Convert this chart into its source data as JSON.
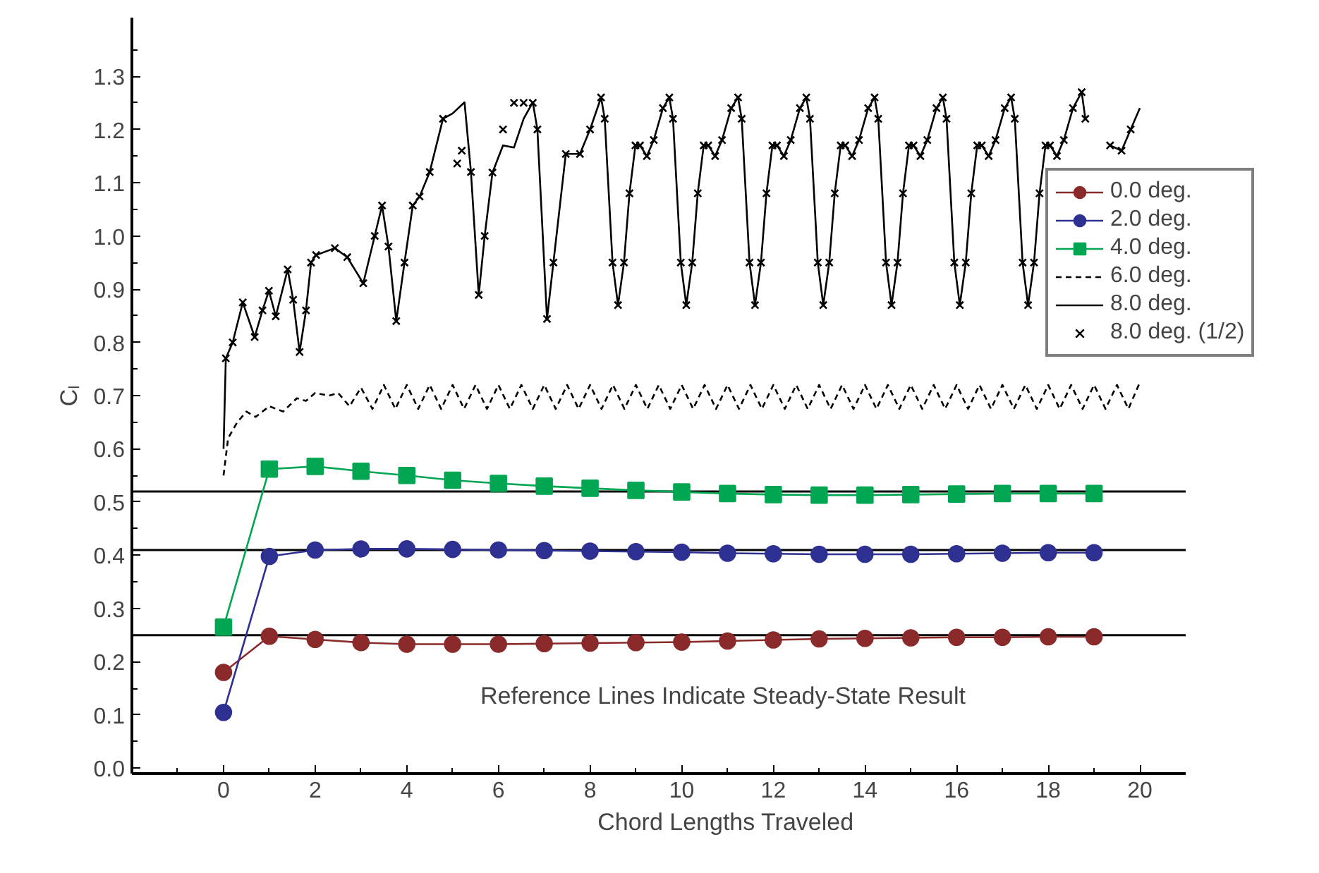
{
  "chart_data": {
    "type": "line",
    "xlabel": "Chord Lengths Traveled",
    "ylabel": "Cₗ",
    "xlim": [
      -2,
      21
    ],
    "ylim": [
      -0.01,
      1.41
    ],
    "xticks": [
      {
        "value": -1,
        "label": null
      },
      0,
      {
        "value": 1,
        "label": null
      },
      2,
      {
        "value": 3,
        "label": null
      },
      4,
      {
        "value": 5,
        "label": null
      },
      6,
      {
        "value": 7,
        "label": null
      },
      8,
      {
        "value": 9,
        "label": null
      },
      10,
      {
        "value": 11,
        "label": null
      },
      12,
      {
        "value": 13,
        "label": null
      },
      14,
      {
        "value": 15,
        "label": null
      },
      16,
      {
        "value": 17,
        "label": null
      },
      18,
      {
        "value": 19,
        "label": null
      },
      20
    ],
    "yticks": [
      {
        "value": 0,
        "label": "0.0"
      },
      {
        "value": 0.05,
        "label": null
      },
      0.1,
      {
        "value": 0.15,
        "label": null
      },
      0.2,
      {
        "value": 0.25,
        "label": null
      },
      0.3,
      {
        "value": 0.35,
        "label": null
      },
      0.4,
      {
        "value": 0.45,
        "label": null
      },
      0.5,
      {
        "value": 0.55,
        "label": null
      },
      0.6,
      {
        "value": 0.65,
        "label": null
      },
      0.7,
      {
        "value": 0.75,
        "label": null
      },
      0.8,
      {
        "value": 0.85,
        "label": null
      },
      0.9,
      {
        "value": 0.95,
        "label": null
      },
      {
        "value": 1,
        "label": "1.0"
      },
      {
        "value": 1.05,
        "label": null
      },
      1.1,
      {
        "value": 1.15,
        "label": null
      },
      1.2,
      {
        "value": 1.25,
        "label": null
      },
      1.3,
      {
        "value": 1.35,
        "label": null
      }
    ],
    "grid": false,
    "legend": "right",
    "annotations": [
      "Reference Lines Indicate Steady-State Result"
    ],
    "ref_lines": [
      {
        "axis": "y",
        "value": 0.25,
        "color": "#000000"
      },
      {
        "axis": "y",
        "value": 0.41,
        "color": "#000000"
      },
      {
        "axis": "y",
        "value": 0.52,
        "color": "#000000"
      }
    ],
    "series": [
      {
        "name": "0.0 deg.",
        "color": "#8b2a2a",
        "marker": "circle",
        "line_style": "solid",
        "x": [
          0,
          1,
          2,
          3,
          4,
          5,
          6,
          7,
          8,
          9,
          10,
          11,
          12,
          13,
          14,
          15,
          16,
          17,
          18,
          19
        ],
        "values": [
          0.18,
          0.248,
          0.242,
          0.236,
          0.233,
          0.233,
          0.233,
          0.234,
          0.235,
          0.236,
          0.237,
          0.239,
          0.241,
          0.243,
          0.244,
          0.245,
          0.246,
          0.246,
          0.247,
          0.247
        ]
      },
      {
        "name": "2.0 deg.",
        "color": "#2e3192",
        "marker": "circle",
        "line_style": "solid",
        "x": [
          0,
          1,
          2,
          3,
          4,
          5,
          6,
          7,
          8,
          9,
          10,
          11,
          12,
          13,
          14,
          15,
          16,
          17,
          18,
          19
        ],
        "values": [
          0.105,
          0.398,
          0.41,
          0.412,
          0.412,
          0.411,
          0.41,
          0.409,
          0.408,
          0.407,
          0.406,
          0.404,
          0.403,
          0.402,
          0.402,
          0.402,
          0.403,
          0.404,
          0.405,
          0.405
        ]
      },
      {
        "name": "4.0 deg.",
        "color": "#00a651",
        "marker": "square",
        "line_style": "solid",
        "x": [
          0,
          1,
          2,
          3,
          4,
          5,
          6,
          7,
          8,
          9,
          10,
          11,
          12,
          13,
          14,
          15,
          16,
          17,
          18,
          19
        ],
        "values": [
          0.265,
          0.562,
          0.567,
          0.558,
          0.55,
          0.541,
          0.535,
          0.53,
          0.526,
          0.522,
          0.519,
          0.516,
          0.514,
          0.513,
          0.513,
          0.514,
          0.515,
          0.516,
          0.516,
          0.516
        ]
      },
      {
        "name": "6.0 deg.",
        "color": "#000000",
        "marker": "none",
        "line_style": "dashed",
        "x": [
          0,
          0.1,
          0.3,
          0.5,
          0.7,
          1.0,
          1.3,
          1.6,
          1.8,
          2.0,
          2.3,
          2.5,
          2.75,
          3.0,
          3.25,
          3.5,
          3.75,
          4.0,
          4.25,
          4.5,
          4.75,
          5.0,
          5.25,
          5.5,
          5.75,
          6.0,
          6.25,
          6.5,
          6.75,
          7.0,
          7.25,
          7.5,
          7.75,
          8.0,
          8.25,
          8.5,
          8.75,
          9.0,
          9.25,
          9.5,
          9.75,
          10.0,
          10.25,
          10.5,
          10.75,
          11.0,
          11.25,
          11.5,
          11.75,
          12.0,
          12.25,
          12.5,
          12.75,
          13.0,
          13.25,
          13.5,
          13.75,
          14.0,
          14.25,
          14.5,
          14.75,
          15.0,
          15.25,
          15.5,
          15.75,
          16.0,
          16.25,
          16.5,
          16.75,
          17.0,
          17.25,
          17.5,
          17.75,
          18.0,
          18.25,
          18.5,
          18.75,
          19.0,
          19.25,
          19.5,
          19.75,
          20.0
        ],
        "values": [
          0.55,
          0.62,
          0.65,
          0.67,
          0.66,
          0.68,
          0.67,
          0.695,
          0.69,
          0.705,
          0.7,
          0.705,
          0.68,
          0.715,
          0.675,
          0.72,
          0.675,
          0.72,
          0.675,
          0.72,
          0.675,
          0.72,
          0.675,
          0.72,
          0.675,
          0.72,
          0.675,
          0.72,
          0.675,
          0.72,
          0.675,
          0.72,
          0.675,
          0.72,
          0.675,
          0.72,
          0.675,
          0.72,
          0.675,
          0.72,
          0.675,
          0.72,
          0.675,
          0.72,
          0.675,
          0.72,
          0.675,
          0.72,
          0.675,
          0.72,
          0.675,
          0.72,
          0.675,
          0.72,
          0.675,
          0.72,
          0.675,
          0.72,
          0.675,
          0.72,
          0.675,
          0.72,
          0.675,
          0.72,
          0.675,
          0.72,
          0.675,
          0.72,
          0.675,
          0.72,
          0.675,
          0.72,
          0.675,
          0.72,
          0.675,
          0.72,
          0.675,
          0.72,
          0.675,
          0.72,
          0.675,
          0.725
        ]
      },
      {
        "name": "8.0 deg.",
        "color": "#000000",
        "marker": "none",
        "line_style": "solid",
        "x": [
          0,
          0.05,
          0.2,
          0.42,
          0.68,
          0.85,
          0.99,
          1.14,
          1.4,
          1.52,
          1.66,
          1.8,
          1.91,
          2.02,
          2.43,
          2.7,
          3.05,
          3.3,
          3.46,
          3.6,
          3.77,
          3.95,
          4.13,
          4.28,
          4.5,
          4.79,
          5.0,
          5.26,
          5.4,
          5.57,
          5.7,
          5.87,
          6.1,
          6.34,
          6.55,
          6.75,
          6.85,
          7.06,
          7.2,
          7.47,
          7.78,
          8.0,
          8.24,
          8.32,
          8.49,
          8.61,
          8.74,
          8.86,
          8.99,
          9.09,
          9.24,
          9.39,
          9.59,
          9.73,
          9.81,
          9.98,
          10.1,
          10.23,
          10.35,
          10.48,
          10.58,
          10.73,
          10.88,
          11.08,
          11.23,
          11.31,
          11.48,
          11.6,
          11.73,
          11.85,
          11.98,
          12.08,
          12.23,
          12.38,
          12.58,
          12.72,
          12.8,
          12.97,
          13.09,
          13.22,
          13.34,
          13.47,
          13.57,
          13.72,
          13.87,
          14.07,
          14.21,
          14.29,
          14.46,
          14.58,
          14.71,
          14.83,
          14.96,
          15.06,
          15.21,
          15.36,
          15.56,
          15.7,
          15.78,
          15.95,
          16.07,
          16.2,
          16.32,
          16.45,
          16.55,
          16.7,
          16.85,
          17.05,
          17.19,
          17.27,
          17.44,
          17.56,
          17.69,
          17.81,
          17.94,
          18.04,
          18.19,
          18.34,
          18.54,
          18.73,
          18.81,
          19.0,
          19.35,
          19.6,
          19.8,
          20.0
        ],
        "values": [
          0.6,
          0.77,
          0.8,
          0.875,
          0.81,
          0.86,
          0.897,
          0.849,
          0.937,
          0.88,
          0.782,
          0.86,
          0.95,
          0.964,
          0.977,
          0.96,
          0.911,
          1.0,
          1.057,
          0.98,
          0.84,
          0.95,
          1.057,
          1.074,
          1.12,
          1.22,
          1.23,
          1.251,
          1.12,
          0.889,
          1.0,
          1.119,
          1.17,
          1.166,
          1.22,
          1.251,
          1.2,
          0.844,
          0.95,
          1.154,
          1.154,
          1.2,
          1.26,
          1.22,
          0.95,
          0.87,
          0.95,
          1.08,
          1.17,
          1.17,
          1.15,
          1.18,
          1.24,
          1.26,
          1.22,
          0.95,
          0.87,
          0.95,
          1.08,
          1.17,
          1.17,
          1.15,
          1.18,
          1.24,
          1.26,
          1.22,
          0.95,
          0.87,
          0.95,
          1.08,
          1.17,
          1.17,
          1.15,
          1.18,
          1.24,
          1.26,
          1.22,
          0.95,
          0.87,
          0.95,
          1.08,
          1.17,
          1.17,
          1.15,
          1.18,
          1.24,
          1.26,
          1.22,
          0.95,
          0.87,
          0.95,
          1.08,
          1.17,
          1.17,
          1.15,
          1.18,
          1.24,
          1.26,
          1.22,
          0.95,
          0.87,
          0.95,
          1.08,
          1.17,
          1.17,
          1.15,
          1.18,
          1.24,
          1.26,
          1.22,
          0.95,
          0.87,
          0.95,
          1.08,
          1.17,
          1.17,
          1.15,
          1.18,
          1.24,
          1.27,
          1.22,
          null,
          1.17,
          1.16,
          1.2,
          1.24
        ]
      },
      {
        "name": "8.0 deg. (1/2)",
        "type": "scatter",
        "color": "#000000",
        "marker": "cross",
        "x": [
          0.05,
          0.2,
          0.42,
          0.68,
          0.85,
          0.99,
          1.14,
          1.4,
          1.52,
          1.66,
          1.8,
          1.91,
          2.02,
          2.43,
          2.7,
          3.05,
          3.3,
          3.46,
          3.6,
          3.77,
          3.95,
          4.13,
          4.28,
          4.5,
          4.79,
          5.1,
          5.2,
          5.4,
          5.57,
          5.7,
          5.87,
          6.1,
          6.34,
          6.55,
          6.75,
          6.85,
          7.06,
          7.2,
          7.47,
          7.78,
          8.0,
          8.24,
          8.32,
          8.49,
          8.61,
          8.74,
          8.86,
          8.99,
          9.09,
          9.24,
          9.39,
          9.59,
          9.73,
          9.81,
          9.98,
          10.1,
          10.23,
          10.35,
          10.48,
          10.58,
          10.73,
          10.88,
          11.08,
          11.23,
          11.31,
          11.48,
          11.6,
          11.73,
          11.85,
          11.98,
          12.08,
          12.23,
          12.38,
          12.58,
          12.72,
          12.8,
          12.97,
          13.09,
          13.22,
          13.34,
          13.47,
          13.57,
          13.72,
          13.87,
          14.07,
          14.21,
          14.29,
          14.46,
          14.58,
          14.71,
          14.83,
          14.96,
          15.06,
          15.21,
          15.36,
          15.56,
          15.7,
          15.78,
          15.95,
          16.07,
          16.2,
          16.32,
          16.45,
          16.55,
          16.7,
          16.85,
          17.05,
          17.19,
          17.27,
          17.44,
          17.56,
          17.69,
          17.81,
          17.94,
          18.04,
          18.19,
          18.34,
          18.54,
          18.73,
          18.81,
          19.35,
          19.6,
          19.8
        ],
        "values": [
          0.77,
          0.8,
          0.875,
          0.81,
          0.86,
          0.897,
          0.849,
          0.937,
          0.88,
          0.782,
          0.86,
          0.95,
          0.964,
          0.977,
          0.96,
          0.911,
          1.0,
          1.057,
          0.98,
          0.84,
          0.95,
          1.057,
          1.074,
          1.12,
          1.22,
          1.136,
          1.16,
          1.12,
          0.889,
          1.0,
          1.119,
          1.2,
          1.25,
          1.25,
          1.25,
          1.2,
          0.844,
          0.95,
          1.154,
          1.154,
          1.2,
          1.26,
          1.22,
          0.95,
          0.87,
          0.95,
          1.08,
          1.17,
          1.17,
          1.15,
          1.18,
          1.24,
          1.26,
          1.22,
          0.95,
          0.87,
          0.95,
          1.08,
          1.17,
          1.17,
          1.15,
          1.18,
          1.24,
          1.26,
          1.22,
          0.95,
          0.87,
          0.95,
          1.08,
          1.17,
          1.17,
          1.15,
          1.18,
          1.24,
          1.26,
          1.22,
          0.95,
          0.87,
          0.95,
          1.08,
          1.17,
          1.17,
          1.15,
          1.18,
          1.24,
          1.26,
          1.22,
          0.95,
          0.87,
          0.95,
          1.08,
          1.17,
          1.17,
          1.15,
          1.18,
          1.24,
          1.26,
          1.22,
          0.95,
          0.87,
          0.95,
          1.08,
          1.17,
          1.17,
          1.15,
          1.18,
          1.24,
          1.26,
          1.22,
          0.95,
          0.87,
          0.95,
          1.08,
          1.17,
          1.17,
          1.15,
          1.18,
          1.24,
          1.27,
          1.22,
          1.17,
          1.16,
          1.2
        ]
      }
    ]
  }
}
